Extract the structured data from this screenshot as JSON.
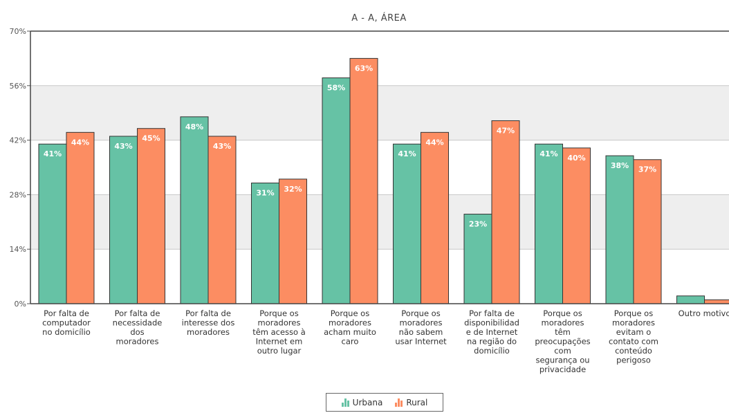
{
  "chart_data": {
    "type": "bar",
    "title": "A - A, ÁREA",
    "categories": [
      "Por falta de computador no domicílio",
      "Por falta de necessidade dos moradores",
      "Por falta de interesse dos moradores",
      "Porque os moradores têm acesso à Internet em outro lugar",
      "Porque os moradores acham muito caro",
      "Porque os moradores não sabem usar Internet",
      "Por falta de disponibilidade de Internet na região do domicílio",
      "Porque os moradores têm preocupações com segurança ou privacidade",
      "Porque os moradores evitam o contato com conteúdo perigoso",
      "Outro motivo"
    ],
    "category_lines": [
      [
        "Por falta de",
        "computador",
        "no domicílio"
      ],
      [
        "Por falta de",
        "necessidade",
        "dos",
        "moradores"
      ],
      [
        "Por falta de",
        "interesse dos",
        "moradores"
      ],
      [
        "Porque os",
        "moradores",
        "têm acesso à",
        "Internet em",
        "outro lugar"
      ],
      [
        "Porque os",
        "moradores",
        "acham muito",
        "caro"
      ],
      [
        "Porque os",
        "moradores",
        "não sabem",
        "usar Internet"
      ],
      [
        "Por falta de",
        "disponibilidad",
        "e de Internet",
        "na região do",
        "domicílio"
      ],
      [
        "Porque os",
        "moradores",
        "têm",
        "preocupações",
        "com",
        "segurança ou",
        "privacidade"
      ],
      [
        "Porque os",
        "moradores",
        "evitam o",
        "contato com",
        "conteúdo",
        "perigoso"
      ],
      [
        "Outro motivo"
      ]
    ],
    "series": [
      {
        "name": "Urbana",
        "color": "#66c2a5",
        "values": [
          41,
          43,
          48,
          31,
          58,
          41,
          23,
          41,
          38,
          2
        ],
        "labels": [
          "41%",
          "43%",
          "48%",
          "31%",
          "58%",
          "41%",
          "23%",
          "41%",
          "38%",
          ""
        ]
      },
      {
        "name": "Rural",
        "color": "#fc8d62",
        "values": [
          44,
          45,
          43,
          32,
          63,
          44,
          47,
          40,
          37,
          1
        ],
        "labels": [
          "44%",
          "45%",
          "43%",
          "32%",
          "63%",
          "44%",
          "47%",
          "40%",
          "37%",
          ""
        ]
      }
    ],
    "ylim": [
      0,
      70
    ],
    "yticks": [
      "0%",
      "14%",
      "28%",
      "42%",
      "56%",
      "70%"
    ],
    "ytick_values": [
      0,
      14,
      28,
      42,
      56,
      70
    ],
    "grid": "horizontal alternating bands",
    "legend_position": "bottom-center"
  }
}
